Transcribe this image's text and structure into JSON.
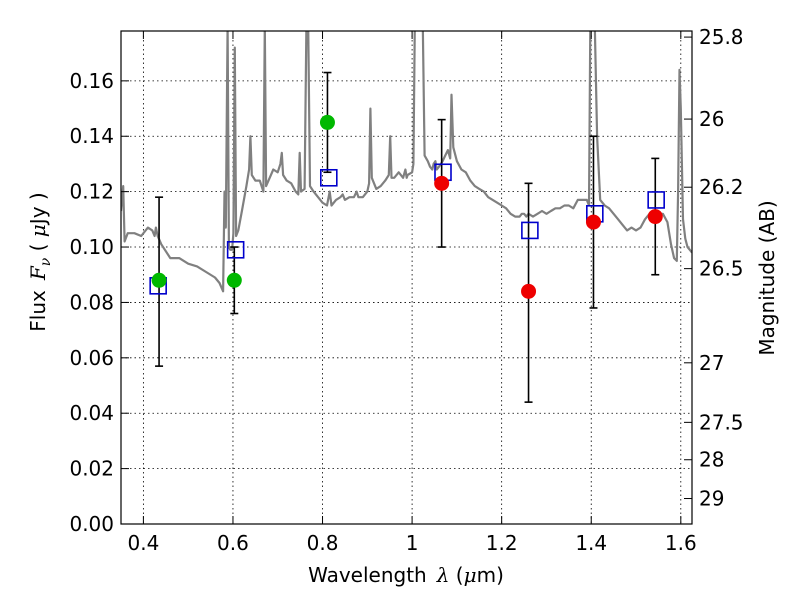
{
  "chart_data": {
    "type": "scatter",
    "xlabel_text": "Wavelength",
    "xlabel_symbol": "λ",
    "xlabel_unit_open": " (",
    "xlabel_unit_mu": "μ",
    "xlabel_unit_close": "m)",
    "ylabel_text": "Flux",
    "ylabel_symbol": "F",
    "ylabel_subscript": "ν",
    "ylabel_unit_open": " ( ",
    "ylabel_unit_mu": "μ",
    "ylabel_unit_close": "Jy )",
    "ylabel_right": "Magnitude (AB)",
    "xlim": [
      0.35,
      1.625
    ],
    "ylim": [
      0.0,
      0.178
    ],
    "grid": true,
    "x_ticks": [
      0.4,
      0.6,
      0.8,
      1.0,
      1.2,
      1.4,
      1.6
    ],
    "x_tick_labels": [
      "0.4",
      "0.6",
      "0.8",
      "1",
      "1.2",
      "1.4",
      "1.6"
    ],
    "y_ticks": [
      0.0,
      0.02,
      0.04,
      0.06,
      0.08,
      0.1,
      0.12,
      0.14,
      0.16
    ],
    "y_tick_labels": [
      "0.00",
      "0.02",
      "0.04",
      "0.06",
      "0.08",
      "0.10",
      "0.12",
      "0.14",
      "0.16"
    ],
    "right_ticks": [
      {
        "label": "25.8",
        "flux": 0.1758
      },
      {
        "label": "26",
        "flux": 0.1462
      },
      {
        "label": "26.2",
        "flux": 0.1216
      },
      {
        "label": "26.5",
        "flux": 0.0922
      },
      {
        "label": "27",
        "flux": 0.0582
      },
      {
        "label": "27.5",
        "flux": 0.0367
      },
      {
        "label": "28",
        "flux": 0.0232
      },
      {
        "label": "29",
        "flux": 0.0092
      }
    ],
    "colors": {
      "green_points": "#00b800",
      "red_points": "#ee0000",
      "model_squares": "#0000cc",
      "template": "#808080",
      "errorbars": "#000000"
    },
    "model_squares": [
      {
        "x": 0.433,
        "y": 0.086
      },
      {
        "x": 0.606,
        "y": 0.099
      },
      {
        "x": 0.814,
        "y": 0.125
      },
      {
        "x": 1.069,
        "y": 0.127
      },
      {
        "x": 1.263,
        "y": 0.106
      },
      {
        "x": 1.408,
        "y": 0.112
      },
      {
        "x": 1.545,
        "y": 0.117
      }
    ],
    "green_points": [
      {
        "x": 0.435,
        "y": 0.088
      },
      {
        "x": 0.603,
        "y": 0.088
      },
      {
        "x": 0.811,
        "y": 0.145
      }
    ],
    "red_points": [
      {
        "x": 1.066,
        "y": 0.123
      },
      {
        "x": 1.26,
        "y": 0.084
      },
      {
        "x": 1.405,
        "y": 0.109
      },
      {
        "x": 1.543,
        "y": 0.111
      }
    ],
    "errorbars": [
      {
        "x": 0.435,
        "low": 0.057,
        "high": 0.118
      },
      {
        "x": 0.603,
        "low": 0.076,
        "high": 0.1
      },
      {
        "x": 0.811,
        "low": 0.127,
        "high": 0.163
      },
      {
        "x": 1.066,
        "low": 0.1,
        "high": 0.146
      },
      {
        "x": 1.26,
        "low": 0.044,
        "high": 0.123
      },
      {
        "x": 1.405,
        "low": 0.078,
        "high": 0.14
      },
      {
        "x": 1.543,
        "low": 0.09,
        "high": 0.132
      }
    ],
    "template_spectrum": [
      [
        0.35,
        0.113
      ],
      [
        0.355,
        0.122
      ],
      [
        0.358,
        0.102
      ],
      [
        0.365,
        0.105
      ],
      [
        0.38,
        0.105
      ],
      [
        0.395,
        0.104
      ],
      [
        0.41,
        0.107
      ],
      [
        0.42,
        0.106
      ],
      [
        0.425,
        0.104
      ],
      [
        0.428,
        0.107
      ],
      [
        0.432,
        0.104
      ],
      [
        0.44,
        0.101
      ],
      [
        0.46,
        0.096
      ],
      [
        0.48,
        0.096
      ],
      [
        0.5,
        0.094
      ],
      [
        0.52,
        0.093
      ],
      [
        0.54,
        0.091
      ],
      [
        0.56,
        0.089
      ],
      [
        0.57,
        0.087
      ],
      [
        0.578,
        0.084
      ],
      [
        0.581,
        0.12
      ],
      [
        0.584,
        0.107
      ],
      [
        0.588,
        0.18
      ],
      [
        0.591,
        0.1
      ],
      [
        0.594,
        0.099
      ],
      [
        0.598,
        0.099
      ],
      [
        0.601,
        0.105
      ],
      [
        0.604,
        0.172
      ],
      [
        0.607,
        0.104
      ],
      [
        0.612,
        0.106
      ],
      [
        0.62,
        0.113
      ],
      [
        0.63,
        0.122
      ],
      [
        0.636,
        0.128
      ],
      [
        0.639,
        0.14
      ],
      [
        0.642,
        0.126
      ],
      [
        0.65,
        0.124
      ],
      [
        0.66,
        0.124
      ],
      [
        0.668,
        0.12
      ],
      [
        0.671,
        0.18
      ],
      [
        0.674,
        0.122
      ],
      [
        0.682,
        0.125
      ],
      [
        0.69,
        0.128
      ],
      [
        0.7,
        0.127
      ],
      [
        0.706,
        0.13
      ],
      [
        0.709,
        0.134
      ],
      [
        0.712,
        0.126
      ],
      [
        0.72,
        0.124
      ],
      [
        0.73,
        0.123
      ],
      [
        0.74,
        0.12
      ],
      [
        0.746,
        0.119
      ],
      [
        0.749,
        0.134
      ],
      [
        0.752,
        0.12
      ],
      [
        0.76,
        0.121
      ],
      [
        0.764,
        0.18
      ],
      [
        0.768,
        0.18
      ],
      [
        0.772,
        0.122
      ],
      [
        0.78,
        0.12
      ],
      [
        0.79,
        0.118
      ],
      [
        0.8,
        0.116
      ],
      [
        0.81,
        0.115
      ],
      [
        0.816,
        0.12
      ],
      [
        0.82,
        0.115
      ],
      [
        0.83,
        0.117
      ],
      [
        0.84,
        0.118
      ],
      [
        0.845,
        0.119
      ],
      [
        0.85,
        0.117
      ],
      [
        0.86,
        0.118
      ],
      [
        0.87,
        0.118
      ],
      [
        0.876,
        0.12
      ],
      [
        0.88,
        0.118
      ],
      [
        0.89,
        0.118
      ],
      [
        0.9,
        0.12
      ],
      [
        0.904,
        0.123
      ],
      [
        0.907,
        0.15
      ],
      [
        0.91,
        0.125
      ],
      [
        0.92,
        0.121
      ],
      [
        0.93,
        0.122
      ],
      [
        0.94,
        0.124
      ],
      [
        0.948,
        0.126
      ],
      [
        0.951,
        0.14
      ],
      [
        0.954,
        0.125
      ],
      [
        0.96,
        0.125
      ],
      [
        0.97,
        0.127
      ],
      [
        0.98,
        0.125
      ],
      [
        0.985,
        0.128
      ],
      [
        0.988,
        0.125
      ],
      [
        0.99,
        0.126
      ],
      [
        1.0,
        0.127
      ],
      [
        1.003,
        0.13
      ],
      [
        1.006,
        0.18
      ],
      [
        1.01,
        0.18
      ],
      [
        1.014,
        0.18
      ],
      [
        1.02,
        0.18
      ],
      [
        1.024,
        0.18
      ],
      [
        1.028,
        0.133
      ],
      [
        1.035,
        0.131
      ],
      [
        1.04,
        0.129
      ],
      [
        1.045,
        0.128
      ],
      [
        1.048,
        0.13
      ],
      [
        1.052,
        0.131
      ],
      [
        1.055,
        0.128
      ],
      [
        1.06,
        0.129
      ],
      [
        1.068,
        0.131
      ],
      [
        1.074,
        0.133
      ],
      [
        1.08,
        0.135
      ],
      [
        1.085,
        0.132
      ],
      [
        1.088,
        0.155
      ],
      [
        1.092,
        0.136
      ],
      [
        1.1,
        0.131
      ],
      [
        1.11,
        0.128
      ],
      [
        1.12,
        0.127
      ],
      [
        1.13,
        0.124
      ],
      [
        1.14,
        0.122
      ],
      [
        1.15,
        0.121
      ],
      [
        1.16,
        0.12
      ],
      [
        1.17,
        0.118
      ],
      [
        1.18,
        0.117
      ],
      [
        1.19,
        0.116
      ],
      [
        1.2,
        0.115
      ],
      [
        1.21,
        0.114
      ],
      [
        1.22,
        0.112
      ],
      [
        1.23,
        0.111
      ],
      [
        1.24,
        0.111
      ],
      [
        1.245,
        0.112
      ],
      [
        1.25,
        0.112
      ],
      [
        1.255,
        0.111
      ],
      [
        1.26,
        0.112
      ],
      [
        1.27,
        0.111
      ],
      [
        1.28,
        0.112
      ],
      [
        1.29,
        0.113
      ],
      [
        1.3,
        0.112
      ],
      [
        1.31,
        0.113
      ],
      [
        1.32,
        0.114
      ],
      [
        1.33,
        0.114
      ],
      [
        1.34,
        0.115
      ],
      [
        1.35,
        0.115
      ],
      [
        1.36,
        0.114
      ],
      [
        1.37,
        0.117
      ],
      [
        1.38,
        0.117
      ],
      [
        1.39,
        0.117
      ],
      [
        1.395,
        0.115
      ],
      [
        1.398,
        0.18
      ],
      [
        1.402,
        0.18
      ],
      [
        1.405,
        0.18
      ],
      [
        1.408,
        0.18
      ],
      [
        1.413,
        0.14
      ],
      [
        1.42,
        0.117
      ],
      [
        1.43,
        0.115
      ],
      [
        1.44,
        0.114
      ],
      [
        1.45,
        0.112
      ],
      [
        1.46,
        0.11
      ],
      [
        1.47,
        0.108
      ],
      [
        1.48,
        0.106
      ],
      [
        1.49,
        0.107
      ],
      [
        1.5,
        0.106
      ],
      [
        1.51,
        0.107
      ],
      [
        1.52,
        0.11
      ],
      [
        1.53,
        0.112
      ],
      [
        1.54,
        0.112
      ],
      [
        1.55,
        0.112
      ],
      [
        1.56,
        0.112
      ],
      [
        1.57,
        0.109
      ],
      [
        1.578,
        0.101
      ],
      [
        1.585,
        0.096
      ],
      [
        1.591,
        0.095
      ],
      [
        1.594,
        0.12
      ],
      [
        1.597,
        0.164
      ],
      [
        1.6,
        0.15
      ],
      [
        1.605,
        0.11
      ],
      [
        1.61,
        0.103
      ],
      [
        1.615,
        0.1
      ],
      [
        1.62,
        0.099
      ],
      [
        1.625,
        0.098
      ]
    ]
  }
}
